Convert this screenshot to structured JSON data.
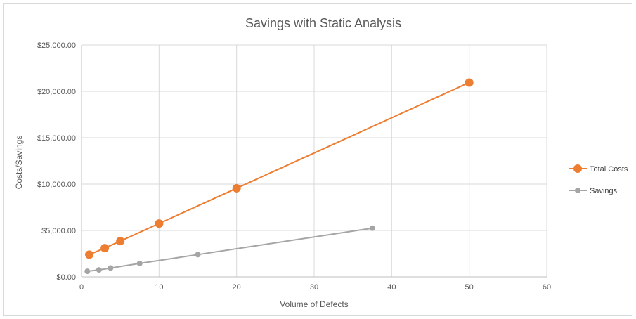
{
  "chart_data": {
    "type": "scatter",
    "title": "Savings with Static Analysis",
    "xlabel": "Volume of Defects",
    "ylabel": "Costs/Savings",
    "xlim": [
      0,
      60
    ],
    "ylim": [
      0,
      25000
    ],
    "x_ticks": [
      "0",
      "10",
      "20",
      "30",
      "40",
      "50",
      "60"
    ],
    "y_ticks": [
      "$0.00",
      "$5,000.00",
      "$10,000.00",
      "$15,000.00",
      "$20,000.00",
      "$25,000.00"
    ],
    "grid": true,
    "legend_position": "right",
    "series": [
      {
        "name": "Total Costs",
        "color": "#ED7D31",
        "points": [
          {
            "x": 1,
            "y": 2400
          },
          {
            "x": 3,
            "y": 3100
          },
          {
            "x": 5,
            "y": 3850
          },
          {
            "x": 10,
            "y": 5750
          },
          {
            "x": 20,
            "y": 9550
          },
          {
            "x": 50,
            "y": 20950
          }
        ]
      },
      {
        "name": "Savings",
        "color": "#A5A5A5",
        "points": [
          {
            "x": 0.75,
            "y": 600
          },
          {
            "x": 2.25,
            "y": 750
          },
          {
            "x": 3.75,
            "y": 950
          },
          {
            "x": 7.5,
            "y": 1450
          },
          {
            "x": 15,
            "y": 2400
          },
          {
            "x": 37.5,
            "y": 5250
          }
        ]
      }
    ]
  }
}
